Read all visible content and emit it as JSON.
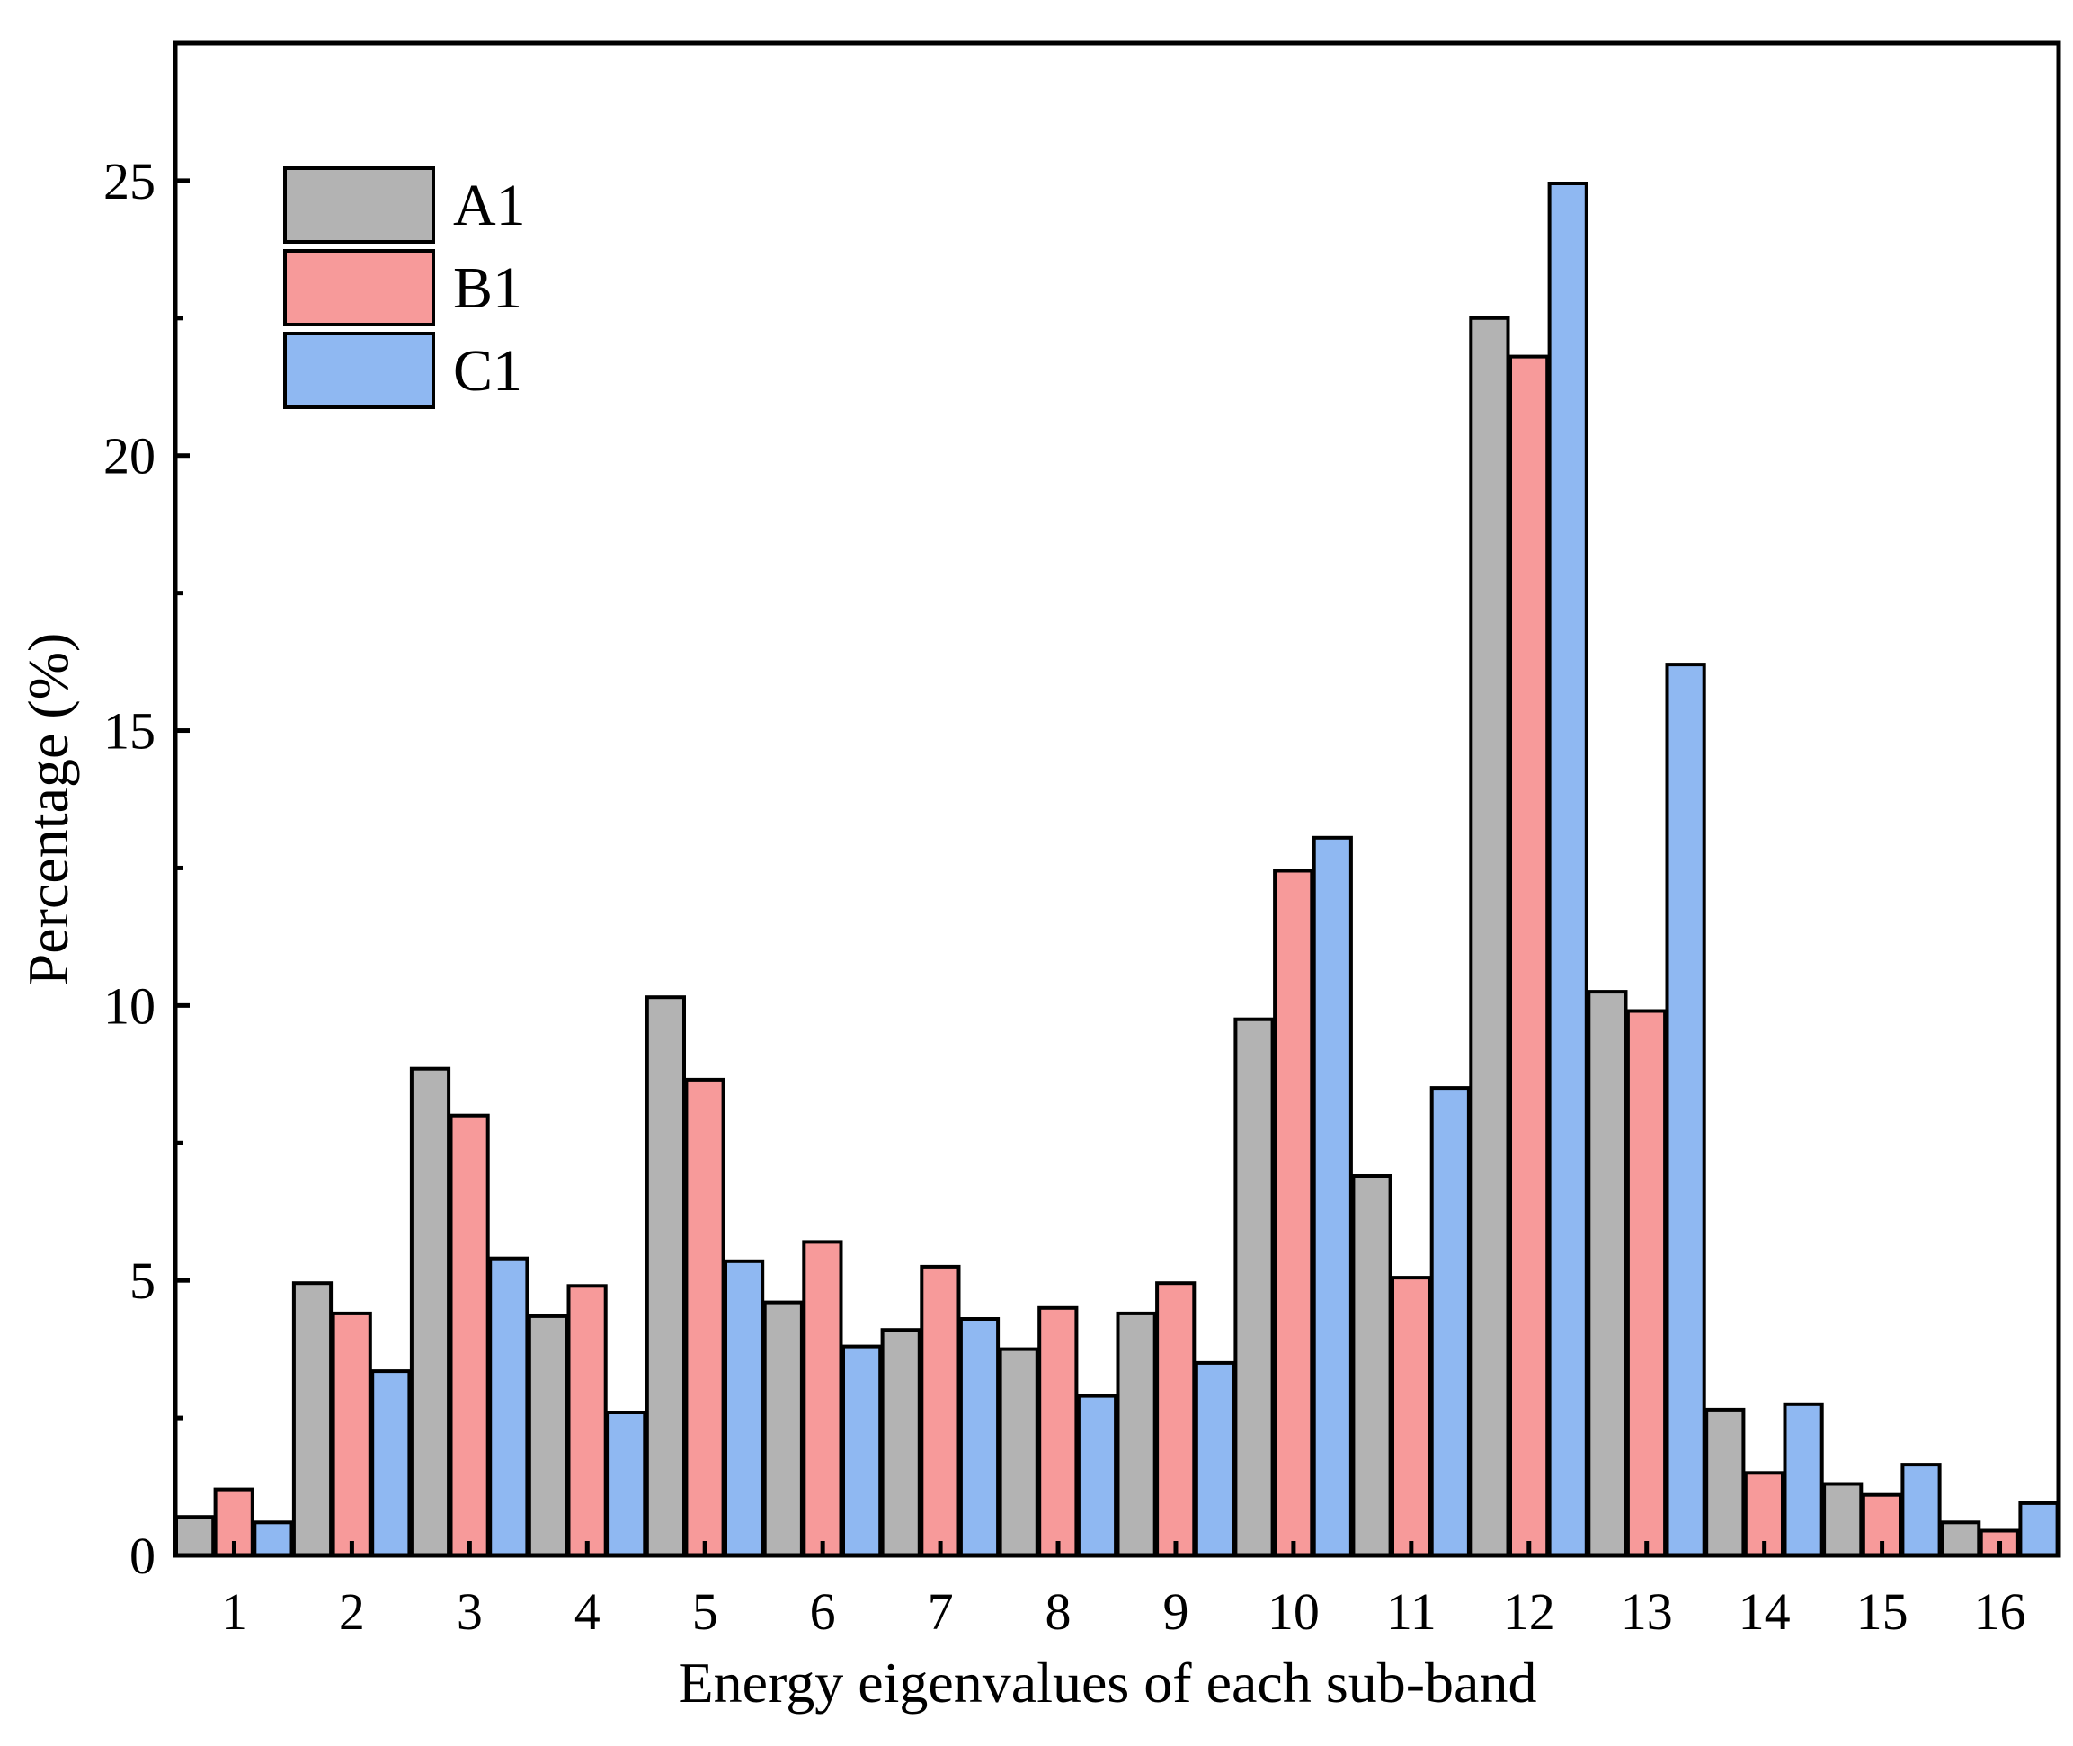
{
  "chart_data": {
    "type": "bar",
    "title": "",
    "xlabel": "Energy eigenvalues of each sub-band",
    "ylabel": "Percentage (%)",
    "ylim": [
      0,
      27.5
    ],
    "yticks": [
      0,
      5,
      10,
      15,
      20,
      25
    ],
    "categories": [
      "1",
      "2",
      "3",
      "4",
      "5",
      "6",
      "7",
      "8",
      "9",
      "10",
      "11",
      "12",
      "13",
      "14",
      "15",
      "16"
    ],
    "series": [
      {
        "name": "A1",
        "color": "#b3b3b3",
        "values": [
          0.7,
          4.95,
          8.85,
          4.35,
          10.15,
          4.6,
          4.1,
          3.75,
          4.4,
          9.75,
          6.9,
          22.5,
          10.25,
          2.65,
          1.3,
          0.6
        ]
      },
      {
        "name": "B1",
        "color": "#f79a9a",
        "values": [
          1.2,
          4.4,
          8.0,
          4.9,
          8.65,
          5.7,
          5.25,
          4.5,
          4.95,
          12.45,
          5.05,
          21.8,
          9.9,
          1.5,
          1.1,
          0.45
        ]
      },
      {
        "name": "C1",
        "color": "#8fb8f2",
        "values": [
          0.6,
          3.35,
          5.4,
          2.6,
          5.35,
          3.8,
          4.3,
          2.9,
          3.5,
          13.05,
          8.5,
          24.95,
          16.2,
          2.75,
          1.65,
          0.95
        ]
      }
    ],
    "legend_position": "top-left"
  }
}
